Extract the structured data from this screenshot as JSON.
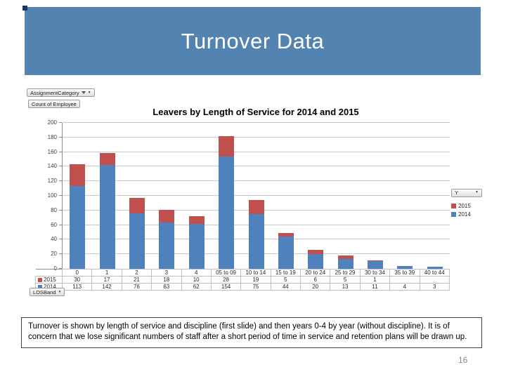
{
  "slide": {
    "title": "Turnover Data",
    "page_number": "16",
    "note": "Turnover is shown by length of service and discipline (first slide) and then years 0-4 by year (without discipline).  It is of concern that we lose significant numbers of staff after a short period of time in service and retention plans will be drawn up."
  },
  "pivot_buttons": {
    "assignment_category": "AssignmentCategory",
    "count_of_employee": "Count of Employee",
    "losband": "LOSBand",
    "legend_field": "Y"
  },
  "chart_data": {
    "type": "bar",
    "stacked": true,
    "title": "Leavers by Length of Service for 2014 and 2015",
    "categories": [
      "0",
      "1",
      "2",
      "3",
      "4",
      "05 to 09",
      "10 to 14",
      "15 to 19",
      "20 to 24",
      "25 to 29",
      "30 to 34",
      "35 to 39",
      "40 to 44"
    ],
    "series": [
      {
        "name": "2015",
        "color": "#c0504d",
        "values": [
          30,
          17,
          21,
          18,
          10,
          28,
          19,
          5,
          6,
          5,
          1,
          null,
          null
        ]
      },
      {
        "name": "2014",
        "color": "#4f81bd",
        "values": [
          113,
          142,
          76,
          63,
          62,
          154,
          75,
          44,
          20,
          13,
          11,
          4,
          3
        ]
      }
    ],
    "ylim": [
      0,
      200
    ],
    "ystep": 20,
    "grid": true,
    "legend_position": "right",
    "xlabel": "",
    "ylabel": ""
  },
  "colors": {
    "title_bar": "#5383b1",
    "accent_square": "#1b365d",
    "series_2015": "#c0504d",
    "series_2014": "#4f81bd",
    "gridline": "#c9c9c9",
    "axis": "#8c8c8c"
  }
}
